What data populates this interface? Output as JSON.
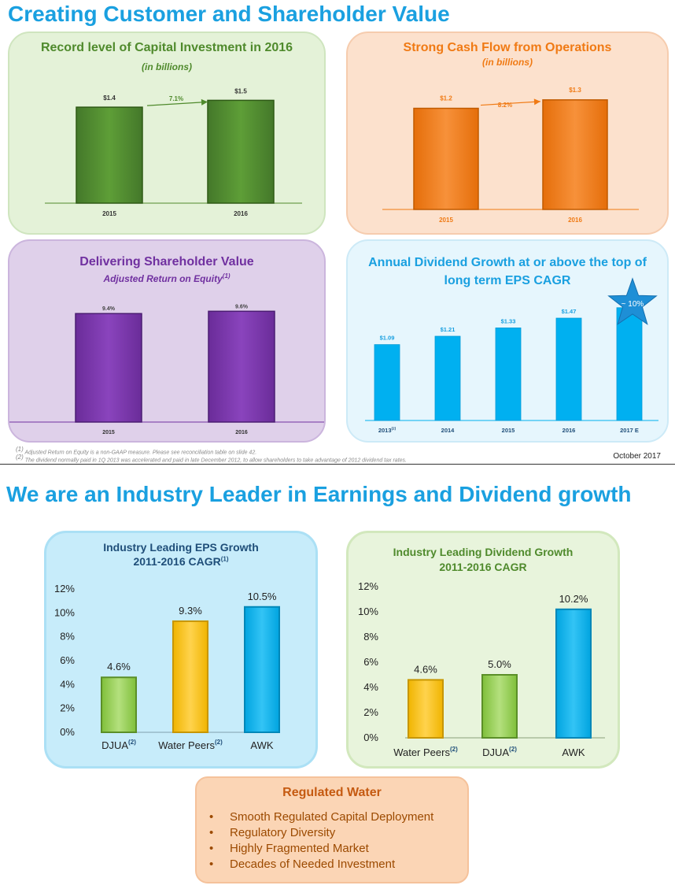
{
  "slide1": {
    "title": "Creating Customer and Shareholder Value",
    "date_label": "October 2017",
    "footnotes": [
      {
        "mark": "(1)",
        "text": " Adjusted Return on Equity is a non-GAAP measure. Please see reconciliation table on slide 42."
      },
      {
        "mark": "(2)",
        "text": " The dividend normally paid in 1Q 2013 was accelerated and paid in late December 2012, to allow shareholders to take advantage of 2012 dividend tax rates."
      }
    ]
  },
  "slide2": {
    "title": "We are an Industry Leader in Earnings and Dividend growth"
  },
  "regulated_water": {
    "title": "Regulated Water",
    "bullet_glyph": "•",
    "items": [
      "Smooth Regulated Capital Deployment",
      "Regulatory Diversity",
      "Highly Fragmented Market",
      "Decades of Needed Investment"
    ]
  },
  "colors": {
    "heading_blue": "#1aa0e0",
    "capex_green": "#4f8a2c",
    "cashflow_orange": "#f07a14",
    "roe_purple": "#7030a0",
    "dividend_blue": "#00b0f0",
    "eps_lightgreen": "#92d050",
    "eps_yellow": "#ffc000"
  },
  "chart_data": [
    {
      "id": "capex",
      "type": "bar",
      "title": "Record level of Capital Investment in 2016",
      "subtitle": "(in billions)",
      "categories": [
        "2015",
        "2016"
      ],
      "values": [
        1.4,
        1.5
      ],
      "value_labels": [
        "$1.4",
        "$1.5"
      ],
      "growth_label": "7.1%",
      "ylim": [
        0,
        1.7
      ],
      "grid": false
    },
    {
      "id": "cashflow",
      "type": "bar",
      "title": "Strong Cash Flow from Operations",
      "subtitle": "(in billions)",
      "categories": [
        "2015",
        "2016"
      ],
      "values": [
        1.2,
        1.3
      ],
      "value_labels": [
        "$1.2",
        "$1.3"
      ],
      "growth_label": "8.2%",
      "ylim": [
        0,
        1.42
      ],
      "grid": false
    },
    {
      "id": "roe",
      "type": "bar",
      "title": "Delivering Shareholder Value",
      "subtitle": "Adjusted Return on Equity",
      "subtitle_mark": "(1)",
      "categories": [
        "2015",
        "2016"
      ],
      "values": [
        9.4,
        9.6
      ],
      "value_labels": [
        "9.4%",
        "9.6%"
      ],
      "ylim": [
        0,
        11.6
      ],
      "grid": false
    },
    {
      "id": "dividend",
      "type": "bar",
      "title": "Annual Dividend Growth at or above the top of long term EPS CAGR",
      "categories": [
        "2013",
        "2014",
        "2015",
        "2016",
        "2017 E"
      ],
      "category_marks": [
        "(2)",
        "",
        "",
        "",
        ""
      ],
      "values": [
        1.09,
        1.21,
        1.33,
        1.47,
        1.62
      ],
      "value_labels": [
        "$1.09",
        "$1.21",
        "$1.33",
        "$1.47",
        ""
      ],
      "callout": "~ 10%",
      "ylim": [
        0,
        1.64
      ],
      "grid": false
    },
    {
      "id": "eps",
      "type": "bar",
      "title": "Industry Leading EPS Growth",
      "subtitle": "2011-2016 CAGR",
      "subtitle_mark": "(1)",
      "categories": [
        "DJUA",
        "Water Peers",
        "AWK"
      ],
      "category_marks": [
        "(2)",
        "(2)",
        ""
      ],
      "values": [
        4.6,
        9.3,
        10.5
      ],
      "value_labels": [
        "4.6%",
        "9.3%",
        "10.5%"
      ],
      "ylim": [
        0,
        12
      ],
      "yticks": [
        "0%",
        "2%",
        "4%",
        "6%",
        "8%",
        "10%",
        "12%"
      ],
      "grid": false
    },
    {
      "id": "divgrowth",
      "type": "bar",
      "title": "Industry Leading Dividend Growth",
      "subtitle": "2011-2016 CAGR",
      "categories": [
        "Water Peers",
        "DJUA",
        "AWK"
      ],
      "category_marks": [
        "(2)",
        "(2)",
        ""
      ],
      "values": [
        4.6,
        5.0,
        10.2
      ],
      "value_labels": [
        "4.6%",
        "5.0%",
        "10.2%"
      ],
      "ylim": [
        0,
        12
      ],
      "yticks": [
        "0%",
        "2%",
        "4%",
        "6%",
        "8%",
        "10%",
        "12%"
      ],
      "grid": false
    }
  ]
}
